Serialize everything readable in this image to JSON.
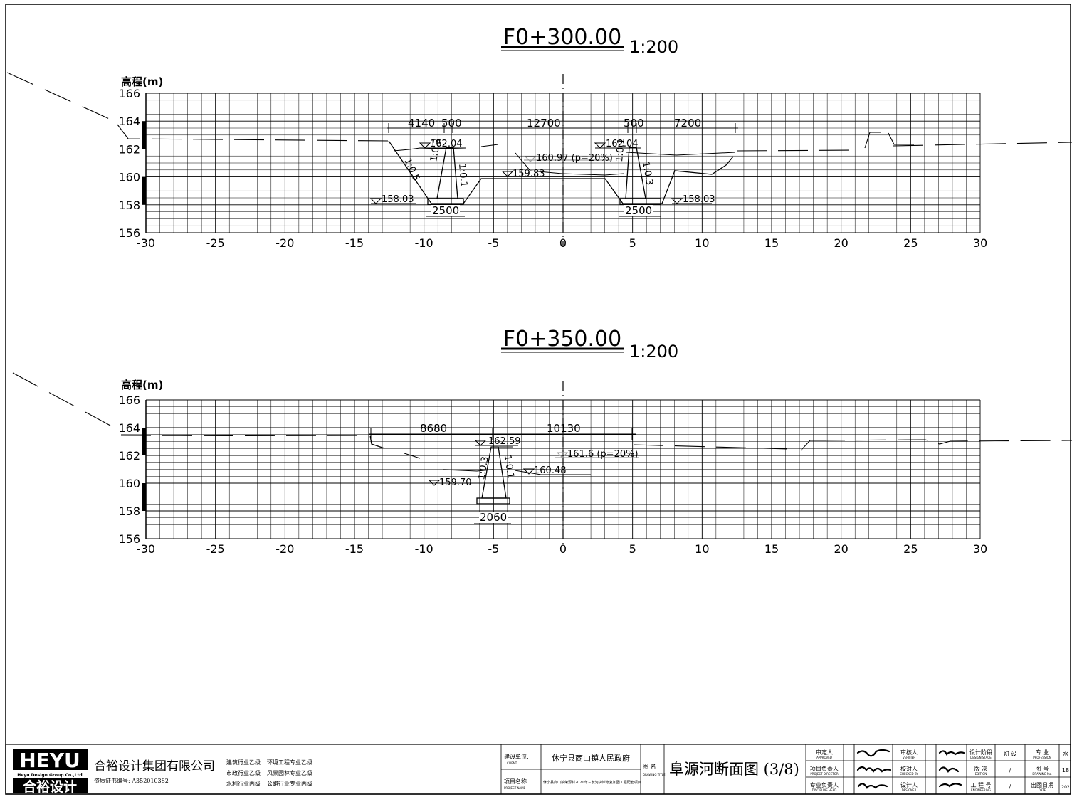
{
  "sections": [
    {
      "id": "s300",
      "station": "F0+300.00",
      "scale": "1:200",
      "ylabel": "高程(m)",
      "y_ticks": [
        "166",
        "164",
        "162",
        "160",
        "158",
        "156"
      ],
      "x_ticks": [
        "-30",
        "-25",
        "-20",
        "-15",
        "-10",
        "-5",
        "0",
        "5",
        "10",
        "15",
        "20",
        "25",
        "30"
      ],
      "dimensions": [
        "4140",
        "500",
        "12700",
        "500",
        "7200",
        "2500",
        "2500"
      ],
      "elevations": [
        "162.04",
        "162.04",
        "160.97 (p=20%)",
        "159.83",
        "158.03",
        "158.03"
      ],
      "slopes": [
        "1:0.5",
        "1:0.3",
        "1:0.1",
        "1:0.1",
        "1:0.3"
      ]
    },
    {
      "id": "s350",
      "station": "F0+350.00",
      "scale": "1:200",
      "ylabel": "高程(m)",
      "y_ticks": [
        "166",
        "164",
        "162",
        "160",
        "158",
        "156"
      ],
      "x_ticks": [
        "-30",
        "-25",
        "-20",
        "-15",
        "-10",
        "-5",
        "0",
        "5",
        "10",
        "15",
        "20",
        "25",
        "30"
      ],
      "dimensions": [
        "8680",
        "10130",
        "2060"
      ],
      "elevations": [
        "162.59",
        "161.6 (p=20%)",
        "160.48",
        "159.70"
      ],
      "slopes": [
        "1:0.3",
        "1:0.1"
      ]
    }
  ],
  "title_block": {
    "logo_text": "HEYU",
    "logo_sub": "Heyu Design Group Co.,Ltd",
    "logo_cn": "合裕设计",
    "company": "合裕设计集团有限公司",
    "certificate": "资质证书编号: A352010382",
    "qualifications": [
      "建筑行业乙级",
      "环境工程专业乙级",
      "市政行业乙级",
      "风景园林专业乙级",
      "水利行业丙级",
      "公路行业专业丙级"
    ],
    "client_label": "建设单位:",
    "client_label_en": "CLIENT",
    "client": "休宁县商山镇人民政府",
    "project_label": "项目名称:",
    "project_label_en": "PROJECT NAME",
    "project": "休宁县商山镇荣源村2020年三长河护岸修复加固工程配套项目",
    "drawing_label": "图 名",
    "drawing_label_en": "DRAWING TITLE",
    "drawing_title": "阜源河断面图 (3/8)",
    "roles": [
      {
        "label": "审定人",
        "en": "APPROVED"
      },
      {
        "label": "项目负责人",
        "en": "PROJECT DIRECTOR"
      },
      {
        "label": "专业负责人",
        "en": "DISCIPLINE HEAD"
      }
    ],
    "roles2": [
      {
        "label": "审核人",
        "en": "VERIFIER"
      },
      {
        "label": "校对人",
        "en": "CHECKED BY"
      },
      {
        "label": "设计人",
        "en": "DESIGNER"
      }
    ],
    "stage": [
      {
        "label": "设计阶段",
        "en": "DESIGN STAGE",
        "value": "初 设"
      },
      {
        "label": "版 次",
        "en": "EDITION",
        "value": "/"
      },
      {
        "label": "工 程 号",
        "en": "ENGINEERING",
        "value": "/"
      }
    ],
    "profession": [
      {
        "label": "专 业",
        "en": "PROFESSION",
        "value": "水"
      },
      {
        "label": "图 号",
        "en": "DRAWING No.",
        "value": "18"
      },
      {
        "label": "出图日期",
        "en": "DATE",
        "value": "202"
      }
    ]
  }
}
